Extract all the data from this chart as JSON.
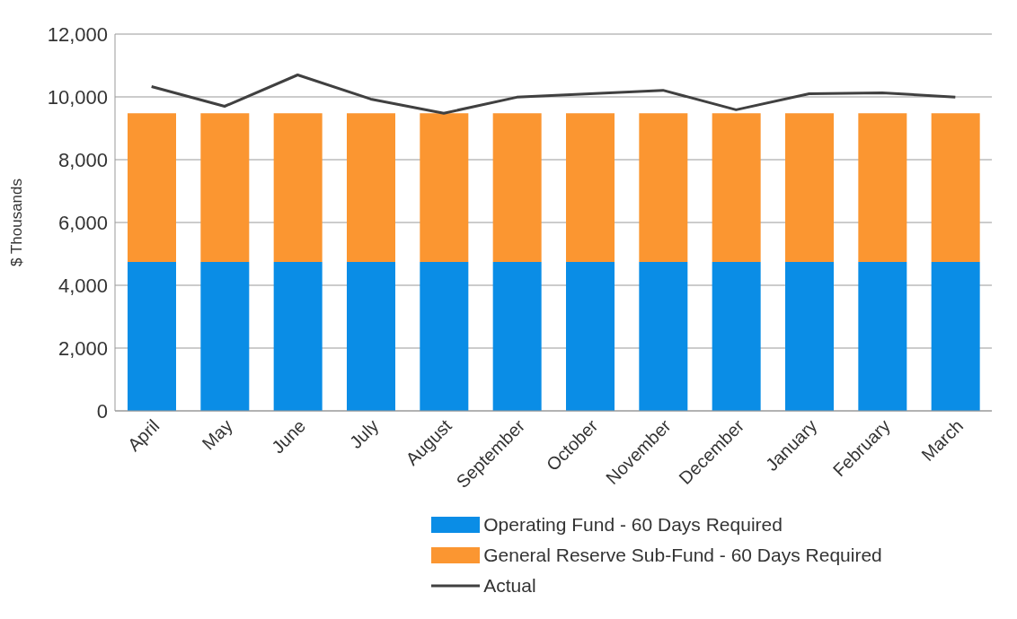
{
  "chart_data": {
    "type": "bar",
    "stacked": true,
    "ylabel": "$ Thousands",
    "categories": [
      "April",
      "May",
      "June",
      "July",
      "August",
      "September",
      "October",
      "November",
      "December",
      "January",
      "February",
      "March"
    ],
    "series": [
      {
        "name": "Operating Fund - 60 Days Required",
        "color": "#0a8de6",
        "values": [
          4740,
          4740,
          4740,
          4740,
          4740,
          4740,
          4740,
          4740,
          4740,
          4740,
          4740,
          4740
        ]
      },
      {
        "name": "General Reserve Sub-Fund - 60 Days Required",
        "color": "#fb9631",
        "values": [
          4740,
          4740,
          4740,
          4740,
          4740,
          4740,
          4740,
          4740,
          4740,
          4740,
          4740,
          4740
        ]
      },
      {
        "name": "Actual",
        "type": "line",
        "color": "#404040",
        "values": [
          10330,
          9700,
          10700,
          9930,
          9480,
          9990,
          10100,
          10210,
          9590,
          10100,
          10130,
          9990
        ]
      }
    ],
    "ylim": [
      0,
      12000
    ],
    "yticks": [
      0,
      {
        "value": 2000,
        "label": "2,000"
      },
      {
        "value": 4000,
        "label": "4,000"
      },
      {
        "value": 6000,
        "label": "6,000"
      },
      {
        "value": 8000,
        "label": "8,000"
      },
      {
        "value": 10000,
        "label": "10,000"
      },
      {
        "value": 12000,
        "label": "12,000"
      }
    ],
    "grid": "y",
    "legend": "bottom",
    "marker": "none"
  }
}
